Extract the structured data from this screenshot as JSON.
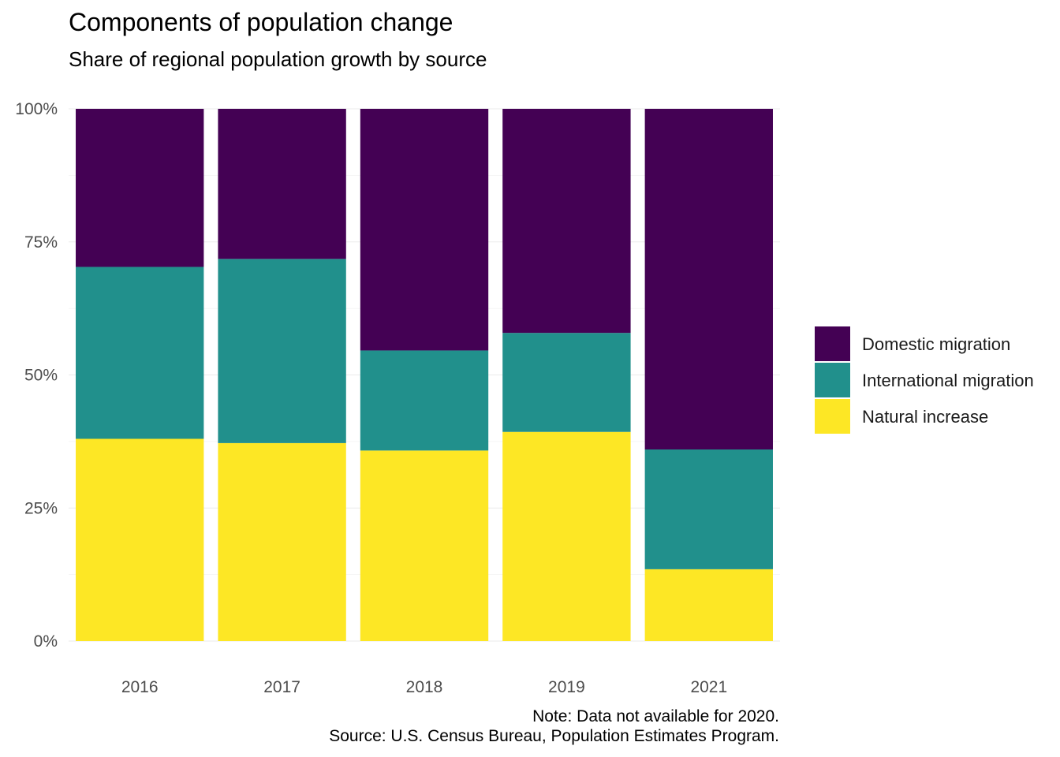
{
  "chart_data": {
    "type": "bar",
    "stacked": true,
    "normalized": true,
    "title": "Components of population change",
    "subtitle": "Share of regional population growth by source",
    "categories": [
      "2016",
      "2017",
      "2018",
      "2019",
      "2021"
    ],
    "series": [
      {
        "name": "Natural increase",
        "color": "#FDE725",
        "values": [
          0.38,
          0.372,
          0.358,
          0.393,
          0.135
        ]
      },
      {
        "name": "International migration",
        "color": "#21908C",
        "values": [
          0.323,
          0.346,
          0.188,
          0.186,
          0.225
        ]
      },
      {
        "name": "Domestic migration",
        "color": "#440154",
        "values": [
          0.297,
          0.282,
          0.454,
          0.421,
          0.64
        ]
      }
    ],
    "ylim": [
      0,
      1
    ],
    "y_ticks": [
      0,
      0.25,
      0.5,
      0.75,
      1
    ],
    "y_tick_labels": [
      "0%",
      "25%",
      "50%",
      "75%",
      "100%"
    ],
    "legend": {
      "position": "right",
      "order": [
        "Domestic migration",
        "International migration",
        "Natural increase"
      ]
    },
    "grid": true,
    "caption": {
      "note": "Note: Data not available for 2020.",
      "source": "Source: U.S. Census Bureau, Population Estimates Program."
    }
  }
}
